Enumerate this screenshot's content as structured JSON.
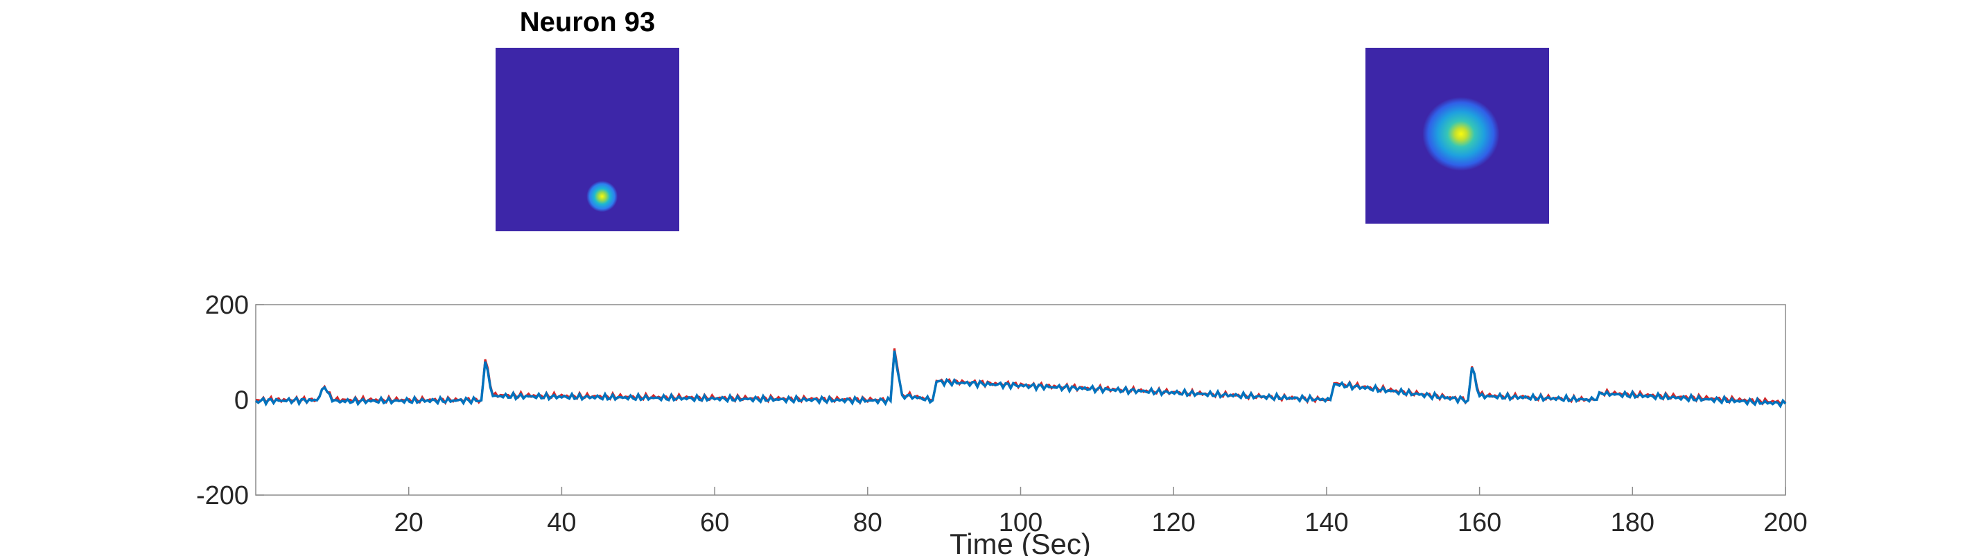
{
  "figure": {
    "title": "Neuron 93"
  },
  "spatial_maps": [
    {
      "name": "footprint-small",
      "background": "#3d26a8",
      "blob_cx": 0.58,
      "blob_cy": 0.81,
      "blob_r": 0.085
    },
    {
      "name": "footprint-zoom",
      "background": "#3d26a8",
      "blob_cx": 0.52,
      "blob_cy": 0.49,
      "blob_r": 0.21
    }
  ],
  "chart_data": {
    "type": "line",
    "title": "Neuron 93",
    "xlabel": "Time (Sec)",
    "ylabel": "",
    "xlim": [
      0,
      200
    ],
    "ylim": [
      -200,
      200
    ],
    "xticks": [
      20,
      40,
      60,
      80,
      100,
      120,
      140,
      160,
      180,
      200
    ],
    "yticks": [
      -200,
      0,
      200
    ],
    "grid": false,
    "legend": "none",
    "series": [
      {
        "color": "#d62728",
        "x": [
          0,
          8,
          9,
          10,
          29.5,
          30,
          31,
          83,
          83.5,
          84.5,
          88.5,
          89,
          140.5,
          141,
          158.5,
          159,
          160,
          175,
          176,
          200
        ],
        "y": [
          0,
          0,
          28,
          0,
          0,
          85,
          10,
          0,
          108,
          12,
          0,
          40,
          0,
          35,
          0,
          70,
          10,
          0,
          15,
          -5
        ]
      },
      {
        "color": "#0072bd",
        "x": [
          0,
          8,
          9,
          10,
          29.5,
          30,
          31,
          83,
          83.5,
          84.5,
          88.5,
          89,
          140.5,
          141,
          158.5,
          159,
          160,
          175,
          176,
          200
        ],
        "y": [
          -2,
          -1,
          26,
          -3,
          -1,
          80,
          8,
          -2,
          103,
          10,
          -1,
          38,
          0,
          33,
          -1,
          68,
          8,
          0,
          13,
          -8
        ]
      }
    ]
  }
}
